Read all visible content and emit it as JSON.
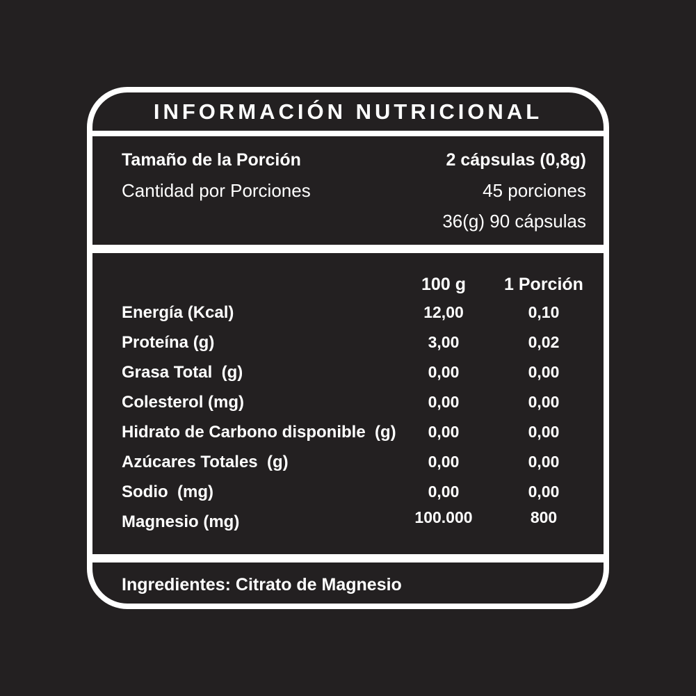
{
  "colors": {
    "background": "#232021",
    "panel_background": "#232021",
    "border": "#ffffff",
    "text": "#ffffff"
  },
  "label": {
    "title": "INFORMACIÓN NUTRICIONAL",
    "serving": {
      "size_label": "Tamaño de la Porción",
      "size_value": "2 cápsulas (0,8g)",
      "count_label": "Cantidad por Porciones",
      "count_value": "45 porciones",
      "net_value": "36(g) 90 cápsulas"
    },
    "table": {
      "col_100g": "100 g",
      "col_portion": "1 Porción",
      "rows": [
        {
          "name": "Energía (Kcal)",
          "per_100g": "12,00",
          "per_portion": "0,10"
        },
        {
          "name": "Proteína (g)",
          "per_100g": "3,00",
          "per_portion": "0,02"
        },
        {
          "name": "Grasa Total  (g)",
          "per_100g": "0,00",
          "per_portion": "0,00"
        },
        {
          "name": "Colesterol (mg)",
          "per_100g": "0,00",
          "per_portion": "0,00"
        },
        {
          "name": "Hidrato de Carbono disponible  (g)",
          "per_100g": "0,00",
          "per_portion": "0,00"
        },
        {
          "name": "Azúcares Totales  (g)",
          "per_100g": "0,00",
          "per_portion": "0,00"
        },
        {
          "name": "Sodio  (mg)",
          "per_100g": "0,00",
          "per_portion": "0,00"
        },
        {
          "name": "Magnesio (mg)",
          "per_100g": "100.000",
          "per_portion": "800"
        }
      ]
    },
    "ingredients": "Ingredientes: Citrato de Magnesio"
  }
}
